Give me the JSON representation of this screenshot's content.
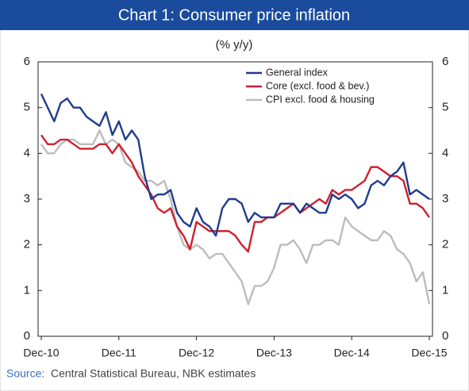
{
  "chart_data": {
    "type": "line",
    "title": "Chart 1: Consumer price inflation",
    "subtitle": "(% y/y)",
    "source_label": "Source:",
    "source": "Central Statistical Bureau, NBK estimates",
    "categories": [
      "Dec-10",
      null,
      null,
      null,
      null,
      null,
      null,
      null,
      null,
      null,
      null,
      null,
      "Dec-11",
      null,
      null,
      null,
      null,
      null,
      null,
      null,
      null,
      null,
      null,
      null,
      "Dec-12",
      null,
      null,
      null,
      null,
      null,
      null,
      null,
      null,
      null,
      null,
      null,
      "Dec-13",
      null,
      null,
      null,
      null,
      null,
      null,
      null,
      null,
      null,
      null,
      null,
      "Dec-14",
      null,
      null,
      null,
      null,
      null,
      null,
      null,
      null,
      null,
      null,
      null,
      "Dec-15"
    ],
    "series": [
      {
        "name": "General index",
        "color": "#1f3c8c",
        "values": [
          5.3,
          5.0,
          4.7,
          5.1,
          5.2,
          5.0,
          5.0,
          4.8,
          4.7,
          4.6,
          4.9,
          4.4,
          4.7,
          4.3,
          4.5,
          4.3,
          3.5,
          3.0,
          3.1,
          3.1,
          3.2,
          2.7,
          2.5,
          2.4,
          2.8,
          2.5,
          2.4,
          2.2,
          2.8,
          3.0,
          3.0,
          2.9,
          2.5,
          2.7,
          2.6,
          2.6,
          2.6,
          2.9,
          2.9,
          2.9,
          2.7,
          2.9,
          2.8,
          2.7,
          2.7,
          3.1,
          3.0,
          3.1,
          3.0,
          2.8,
          2.9,
          3.3,
          3.4,
          3.3,
          3.5,
          3.6,
          3.8,
          3.1,
          3.2,
          3.1,
          3.0
        ]
      },
      {
        "name": "Core (excl. food & bev.)",
        "color": "#d0202e",
        "values": [
          4.4,
          4.2,
          4.2,
          4.3,
          4.3,
          4.2,
          4.1,
          4.1,
          4.1,
          4.2,
          4.2,
          4.0,
          4.2,
          4.0,
          3.8,
          3.5,
          3.3,
          3.1,
          2.8,
          2.7,
          2.8,
          2.4,
          2.2,
          1.9,
          2.5,
          2.4,
          2.3,
          2.3,
          2.3,
          2.3,
          2.2,
          2.0,
          1.85,
          2.5,
          2.5,
          2.6,
          2.6,
          2.7,
          2.8,
          2.9,
          2.7,
          2.8,
          2.9,
          3.0,
          2.9,
          3.2,
          3.1,
          3.2,
          3.2,
          3.3,
          3.4,
          3.7,
          3.7,
          3.6,
          3.5,
          3.5,
          3.4,
          2.9,
          2.9,
          2.8,
          2.6
        ]
      },
      {
        "name": "CPI excl. food & housing",
        "color": "#bcbcbc",
        "values": [
          4.2,
          4.0,
          4.0,
          4.2,
          4.3,
          4.3,
          4.2,
          4.2,
          4.2,
          4.5,
          4.2,
          4.3,
          4.2,
          3.8,
          3.7,
          3.6,
          3.4,
          3.4,
          3.3,
          3.4,
          3.0,
          2.4,
          2.0,
          1.9,
          2.0,
          1.9,
          1.7,
          1.8,
          1.8,
          1.6,
          1.4,
          1.2,
          0.7,
          1.1,
          1.1,
          1.2,
          1.5,
          2.0,
          2.0,
          2.1,
          1.9,
          1.6,
          2.0,
          2.0,
          2.1,
          2.1,
          2.0,
          2.6,
          2.4,
          2.3,
          2.2,
          2.1,
          2.1,
          2.3,
          2.2,
          1.9,
          1.8,
          1.6,
          1.2,
          1.4,
          0.7
        ]
      }
    ],
    "ylim": [
      0,
      6
    ],
    "yticks": [
      0,
      1,
      2,
      3,
      4,
      5,
      6
    ],
    "y2lim": [
      0,
      6
    ],
    "y2ticks": [
      0,
      1,
      2,
      3,
      4,
      5,
      6
    ],
    "grid": false,
    "legend": "upper right"
  }
}
